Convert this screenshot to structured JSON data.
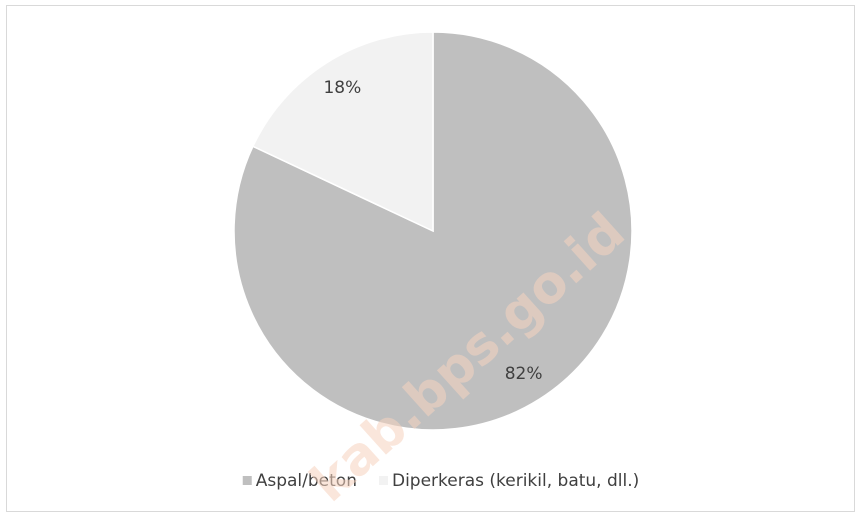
{
  "chart_data": {
    "type": "pie",
    "categories": [
      "Aspal/beton",
      "Diperkeras (kerikil, batu, dll.)"
    ],
    "values": [
      82,
      18
    ],
    "value_labels": [
      "82%",
      "18%"
    ],
    "colors": [
      "#bfbfbf",
      "#f2f2f2"
    ],
    "legend": "bottom",
    "watermark": "kab.bps.go.id"
  }
}
